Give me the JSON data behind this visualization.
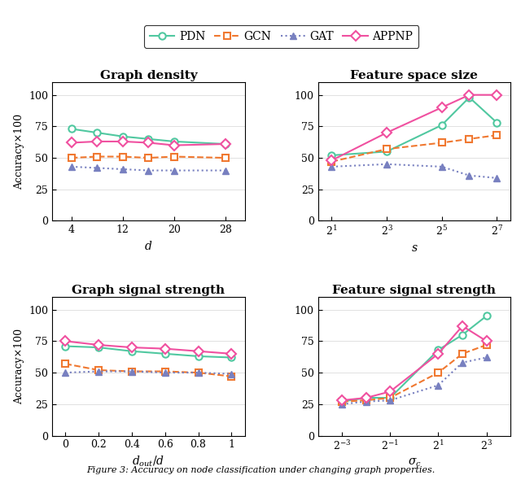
{
  "legend_entries": [
    "PDN",
    "GCN",
    "GAT",
    "APPNP"
  ],
  "model_styles": {
    "PDN": {
      "color": "#50c8a0",
      "marker": "o",
      "linestyle": "-",
      "mfc": "white",
      "mew": 1.5
    },
    "GCN": {
      "color": "#f07830",
      "marker": "s",
      "linestyle": "--",
      "mfc": "white",
      "mew": 1.5
    },
    "GAT": {
      "color": "#7880c0",
      "marker": "^",
      "linestyle": ":",
      "mfc": "#7880c0",
      "mew": 1.0
    },
    "APPNP": {
      "color": "#f050a0",
      "marker": "D",
      "linestyle": "-",
      "mfc": "white",
      "mew": 1.5
    }
  },
  "plots": {
    "graph_density": {
      "title": "Graph density",
      "xlabel": "$d$",
      "xtick_labels": [
        "4",
        "12",
        "20",
        "28"
      ],
      "xtick_positions": [
        4,
        12,
        20,
        28
      ],
      "xlim": [
        1,
        31
      ],
      "ylim": [
        0,
        110
      ],
      "yticks": [
        0,
        25,
        50,
        75,
        100
      ],
      "PDN": [
        73,
        70,
        67,
        65,
        63,
        61
      ],
      "GCN": [
        50,
        51,
        51,
        50,
        51,
        50
      ],
      "GAT": [
        43,
        42,
        41,
        40,
        40,
        40
      ],
      "APPNP": [
        62,
        63,
        63,
        62,
        60,
        61
      ],
      "x": [
        4,
        8,
        12,
        16,
        20,
        28
      ]
    },
    "feature_space_size": {
      "title": "Feature space size",
      "xlabel": "$s$",
      "xtick_labels": [
        "$2^1$",
        "$2^3$",
        "$2^5$",
        "$2^7$"
      ],
      "xtick_positions": [
        1,
        3,
        5,
        7
      ],
      "xlim": [
        0.5,
        7.5
      ],
      "ylim": [
        0,
        110
      ],
      "yticks": [
        0,
        25,
        50,
        75,
        100
      ],
      "PDN": [
        52,
        55,
        76,
        98,
        78
      ],
      "GCN": [
        47,
        57,
        62,
        65,
        68
      ],
      "GAT": [
        43,
        45,
        43,
        36,
        34
      ],
      "APPNP": [
        48,
        70,
        90,
        100,
        100
      ],
      "x": [
        1,
        3,
        5,
        6,
        7
      ]
    },
    "graph_signal_strength": {
      "title": "Graph signal strength",
      "xlabel": "$d_{out}/d$",
      "xtick_labels": [
        "0",
        "0.2",
        "0.4",
        "0.6",
        "0.8",
        "1"
      ],
      "xtick_positions": [
        0,
        0.2,
        0.4,
        0.6,
        0.8,
        1.0
      ],
      "xlim": [
        -0.08,
        1.08
      ],
      "ylim": [
        0,
        110
      ],
      "yticks": [
        0,
        25,
        50,
        75,
        100
      ],
      "PDN": [
        71,
        70,
        67,
        65,
        63,
        62
      ],
      "GCN": [
        57,
        52,
        51,
        51,
        50,
        47
      ],
      "GAT": [
        50,
        51,
        51,
        50,
        50,
        49
      ],
      "APPNP": [
        75,
        72,
        70,
        69,
        67,
        65
      ],
      "x": [
        0,
        0.2,
        0.4,
        0.6,
        0.8,
        1.0
      ]
    },
    "feature_signal_strength": {
      "title": "Feature signal strength",
      "xlabel": "$\\sigma_c$",
      "xtick_labels": [
        "$2^{-3}$",
        "$2^{-1}$",
        "$2^1$",
        "$2^3$"
      ],
      "xtick_positions": [
        -3,
        -1,
        1,
        3
      ],
      "xlim": [
        -4,
        4
      ],
      "ylim": [
        0,
        110
      ],
      "yticks": [
        0,
        25,
        50,
        75,
        100
      ],
      "PDN": [
        27,
        30,
        30,
        68,
        80,
        95
      ],
      "GCN": [
        27,
        28,
        30,
        50,
        65,
        72
      ],
      "GAT": [
        25,
        27,
        28,
        40,
        58,
        62
      ],
      "APPNP": [
        28,
        30,
        35,
        65,
        87,
        75
      ],
      "x": [
        -3,
        -2,
        -1,
        1,
        2,
        3
      ]
    }
  },
  "caption": "Figure 3: Accuracy on node classification under changing graph properties."
}
